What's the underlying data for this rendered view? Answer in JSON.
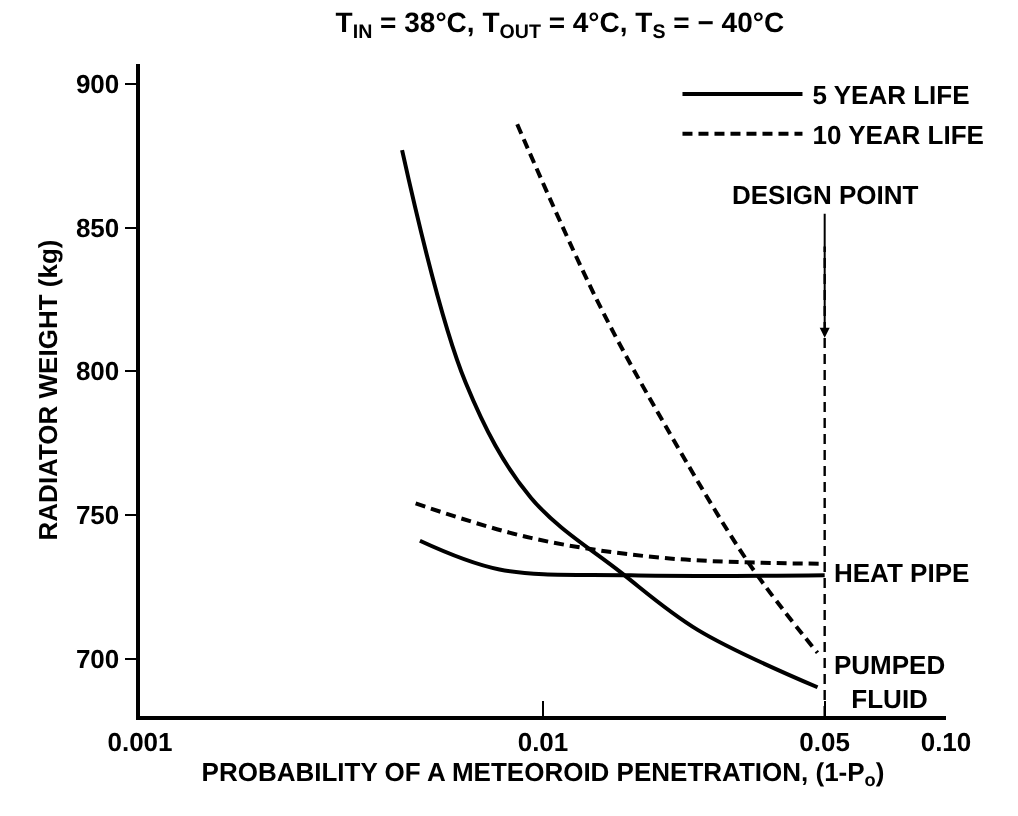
{
  "chart_data": {
    "type": "line",
    "title": "T$_{IN}$ = 38°C, T$_{OUT}$ = 4°C, T$_{S}$ = − 40°C",
    "xlabel": "PROBABILITY OF A METEOROID PENETRATION, (1-P$_{o}$)",
    "ylabel": "RADIATOR WEIGHT (kg)",
    "log": "x",
    "xlim": [
      0.001,
      0.1
    ],
    "xticks": [
      0.001,
      0.01,
      {
        "value": 0.05,
        "label": "0.05"
      },
      {
        "value": 0.1,
        "label": "0.10"
      }
    ],
    "ylim": [
      680,
      907
    ],
    "yticks": [
      700,
      750,
      800,
      850,
      900
    ],
    "legend": "top right",
    "marker": "none",
    "series": [
      {
        "name": "5 YEAR LIFE",
        "color": "#000000",
        "line_style": "solid",
        "x": [
          0.00447,
          0.00643,
          0.00933,
          0.0156,
          0.0242,
          0.048
        ],
        "values": [
          877,
          796,
          756,
          730,
          710,
          690
        ]
      },
      {
        "name": "10 YEAR LIFE",
        "color": "#000000",
        "line_style": "dashed",
        "x": [
          0.00863,
          0.0137,
          0.01995,
          0.0325,
          0.048
        ],
        "values": [
          886,
          824,
          782,
          733,
          702
        ]
      },
      {
        "color": "#000000",
        "line_style": "solid",
        "x": [
          0.00495,
          0.0078,
          0.0165,
          0.05
        ],
        "values": [
          741,
          731,
          729,
          729
        ]
      },
      {
        "color": "#000000",
        "line_style": "dashed",
        "x": [
          0.00483,
          0.00933,
          0.02,
          0.05
        ],
        "values": [
          754,
          742,
          735,
          733
        ]
      }
    ],
    "ref_lines": [
      {
        "axis": "x",
        "value": 0.05,
        "label": "DESIGN POINT",
        "line_style": "dashed",
        "color": "#000000"
      }
    ],
    "annotations": [
      {
        "text": "HEAT PIPE",
        "x": 0.05,
        "y": 730
      },
      {
        "text": "PUMPED\nFLUID",
        "x": 0.05,
        "y": 692
      }
    ]
  }
}
